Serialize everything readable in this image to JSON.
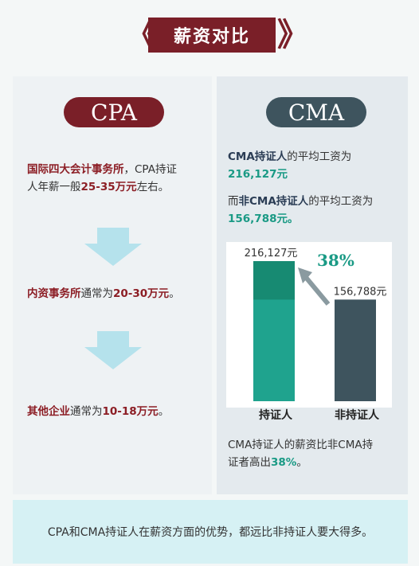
{
  "title": "薪资对比",
  "cpa": {
    "heading": "CPA",
    "block1_a": "国际四大会计事务所",
    "block1_b": "，CPA持证",
    "block1_c": "人年薪一般",
    "block1_d": "25-35万元",
    "block1_e": "左右。",
    "block2_a": "内资事务所",
    "block2_b": "通常为",
    "block2_c": "20-30万元",
    "block2_d": "。",
    "block3_a": "其他企业",
    "block3_b": "通常为",
    "block3_c": "10-18万元",
    "block3_d": "。"
  },
  "cma": {
    "heading": "CMA",
    "line1_a": "CMA持证人",
    "line1_b": "的平均工资为",
    "line1_c": "216,127元",
    "line2_a": "而",
    "line2_b": "非CMA持证人",
    "line2_c": "的平均工资为",
    "line2_d": "156,788元。",
    "note_a": "CMA持证人的薪资比非CMA持",
    "note_b": "证者高出",
    "note_c": "38%",
    "note_d": "。"
  },
  "chart_data": {
    "type": "bar",
    "categories": [
      "持证人",
      "非持证人"
    ],
    "values": [
      216127,
      156788
    ],
    "value_labels": [
      "216,127元",
      "156,788元"
    ],
    "increase_label": "38%",
    "colors": [
      "#1fa38e",
      "#3e545e"
    ],
    "highlight_color": "#178a72"
  },
  "footer": "CPA和CMA持证人在薪资方面的优势，都远比非持证人要大得多。"
}
